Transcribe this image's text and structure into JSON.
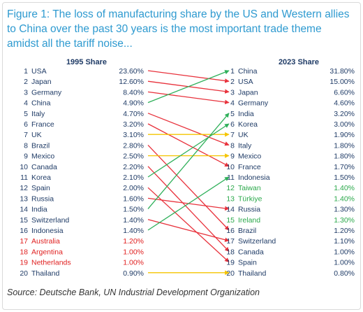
{
  "title": "Figure 1: The loss of manufacturing share by the US and Western allies to China over the past 30 years is the most important trade theme amidst all the tariff noise...",
  "source": "Source: Deutsche Bank, UN Industrial Development Organization",
  "colors": {
    "default": "#1f3b66",
    "red": "#e02020",
    "green": "#2aa84a",
    "arrow_red": "#e8323c",
    "arrow_green": "#2fb05a",
    "arrow_yellow": "#f5c400"
  },
  "chart_data": {
    "type": "table",
    "left_header": "1995 Share",
    "right_header": "2023 Share",
    "left": [
      {
        "rank": "1",
        "country": "USA",
        "share": "23.60%",
        "color": "default"
      },
      {
        "rank": "2",
        "country": "Japan",
        "share": "12.60%",
        "color": "default"
      },
      {
        "rank": "3",
        "country": "Germany",
        "share": "8.40%",
        "color": "default"
      },
      {
        "rank": "4",
        "country": "China",
        "share": "4.90%",
        "color": "default"
      },
      {
        "rank": "5",
        "country": "Italy",
        "share": "4.70%",
        "color": "default"
      },
      {
        "rank": "6",
        "country": "France",
        "share": "3.20%",
        "color": "default"
      },
      {
        "rank": "7",
        "country": "UK",
        "share": "3.10%",
        "color": "default"
      },
      {
        "rank": "8",
        "country": "Brazil",
        "share": "2.80%",
        "color": "default"
      },
      {
        "rank": "9",
        "country": "Mexico",
        "share": "2.50%",
        "color": "default"
      },
      {
        "rank": "10",
        "country": "Canada",
        "share": "2.20%",
        "color": "default"
      },
      {
        "rank": "11",
        "country": "Korea",
        "share": "2.10%",
        "color": "default"
      },
      {
        "rank": "12",
        "country": "Spain",
        "share": "2.00%",
        "color": "default"
      },
      {
        "rank": "13",
        "country": "Russia",
        "share": "1.60%",
        "color": "default"
      },
      {
        "rank": "14",
        "country": "India",
        "share": "1.50%",
        "color": "default"
      },
      {
        "rank": "15",
        "country": "Switzerland",
        "share": "1.40%",
        "color": "default"
      },
      {
        "rank": "16",
        "country": "Indonesia",
        "share": "1.40%",
        "color": "default"
      },
      {
        "rank": "17",
        "country": "Australia",
        "share": "1.20%",
        "color": "red"
      },
      {
        "rank": "18",
        "country": "Argentina",
        "share": "1.00%",
        "color": "red"
      },
      {
        "rank": "19",
        "country": "Netherlands",
        "share": "1.00%",
        "color": "red"
      },
      {
        "rank": "20",
        "country": "Thailand",
        "share": "0.90%",
        "color": "default"
      }
    ],
    "right": [
      {
        "rank": "1",
        "country": "China",
        "share": "31.80%",
        "color": "default"
      },
      {
        "rank": "2",
        "country": "USA",
        "share": "15.00%",
        "color": "default"
      },
      {
        "rank": "3",
        "country": "Japan",
        "share": "6.60%",
        "color": "default"
      },
      {
        "rank": "4",
        "country": "Germany",
        "share": "4.60%",
        "color": "default"
      },
      {
        "rank": "5",
        "country": "India",
        "share": "3.20%",
        "color": "default"
      },
      {
        "rank": "6",
        "country": "Korea",
        "share": "3.00%",
        "color": "default"
      },
      {
        "rank": "7",
        "country": "UK",
        "share": "1.90%",
        "color": "default"
      },
      {
        "rank": "8",
        "country": "Italy",
        "share": "1.80%",
        "color": "default"
      },
      {
        "rank": "9",
        "country": "Mexico",
        "share": "1.80%",
        "color": "default"
      },
      {
        "rank": "10",
        "country": "France",
        "share": "1.70%",
        "color": "default"
      },
      {
        "rank": "11",
        "country": "Indonesia",
        "share": "1.50%",
        "color": "default"
      },
      {
        "rank": "12",
        "country": "Taiwan",
        "share": "1.40%",
        "color": "green"
      },
      {
        "rank": "13",
        "country": "Türkiye",
        "share": "1.40%",
        "color": "green"
      },
      {
        "rank": "14",
        "country": "Russia",
        "share": "1.30%",
        "color": "default"
      },
      {
        "rank": "15",
        "country": "Ireland",
        "share": "1.30%",
        "color": "green"
      },
      {
        "rank": "16",
        "country": "Brazil",
        "share": "1.20%",
        "color": "default"
      },
      {
        "rank": "17",
        "country": "Switzerland",
        "share": "1.10%",
        "color": "default"
      },
      {
        "rank": "18",
        "country": "Canada",
        "share": "1.00%",
        "color": "default"
      },
      {
        "rank": "19",
        "country": "Spain",
        "share": "1.00%",
        "color": "default"
      },
      {
        "rank": "20",
        "country": "Thailand",
        "share": "0.80%",
        "color": "default"
      }
    ],
    "arrows": [
      {
        "from": 1,
        "to": 2,
        "color": "arrow_red"
      },
      {
        "from": 2,
        "to": 3,
        "color": "arrow_red"
      },
      {
        "from": 3,
        "to": 4,
        "color": "arrow_red"
      },
      {
        "from": 4,
        "to": 1,
        "color": "arrow_green"
      },
      {
        "from": 5,
        "to": 8,
        "color": "arrow_red"
      },
      {
        "from": 6,
        "to": 10,
        "color": "arrow_red"
      },
      {
        "from": 7,
        "to": 7,
        "color": "arrow_yellow"
      },
      {
        "from": 8,
        "to": 16,
        "color": "arrow_red"
      },
      {
        "from": 9,
        "to": 9,
        "color": "arrow_yellow"
      },
      {
        "from": 10,
        "to": 18,
        "color": "arrow_red"
      },
      {
        "from": 11,
        "to": 6,
        "color": "arrow_green"
      },
      {
        "from": 12,
        "to": 19,
        "color": "arrow_red"
      },
      {
        "from": 13,
        "to": 14,
        "color": "arrow_red"
      },
      {
        "from": 14,
        "to": 5,
        "color": "arrow_green"
      },
      {
        "from": 15,
        "to": 17,
        "color": "arrow_red"
      },
      {
        "from": 16,
        "to": 11,
        "color": "arrow_green"
      },
      {
        "from": 20,
        "to": 20,
        "color": "arrow_yellow"
      }
    ]
  }
}
